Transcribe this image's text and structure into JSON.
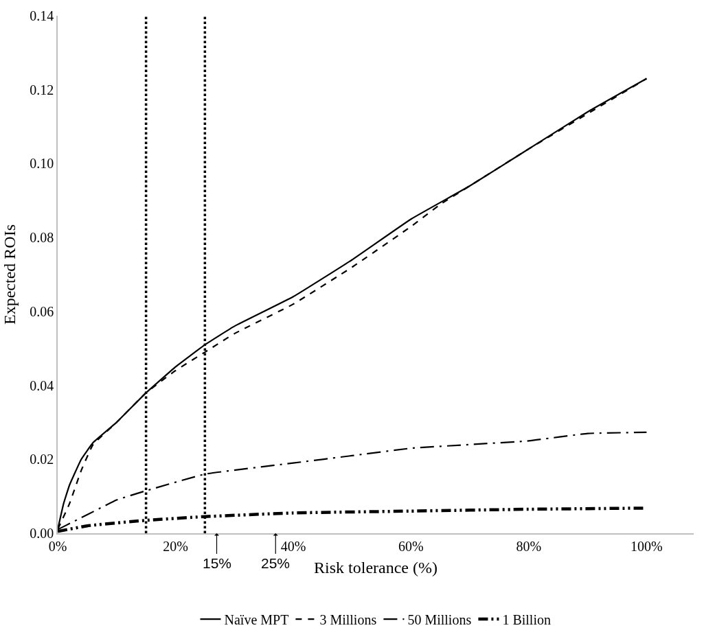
{
  "chart_data": {
    "type": "line",
    "xlabel": "Risk tolerance (%)",
    "ylabel": "Expected ROIs",
    "xlim": [
      0,
      108
    ],
    "xticks": [
      {
        "value": 0,
        "label": "0%"
      },
      {
        "value": 20,
        "label": "20%"
      },
      {
        "value": 40,
        "label": "40%"
      },
      {
        "value": 60,
        "label": "60%"
      },
      {
        "value": 80,
        "label": "80%"
      },
      {
        "value": 100,
        "label": "100%"
      }
    ],
    "ylim": [
      0,
      0.14
    ],
    "yticks": [
      {
        "value": 0,
        "label": "0.00"
      },
      {
        "value": 0.02,
        "label": "0.02"
      },
      {
        "value": 0.04,
        "label": "0.04"
      },
      {
        "value": 0.06,
        "label": "0.06"
      },
      {
        "value": 0.08,
        "label": "0.08"
      },
      {
        "value": 0.1,
        "label": "0.10"
      },
      {
        "value": 0.12,
        "label": "0.12"
      },
      {
        "value": 0.14,
        "label": "0.14"
      }
    ],
    "legend": "bottom",
    "marker": "none",
    "series": [
      {
        "name": "Naïve MPT",
        "color": "#000000",
        "line_style": "solid",
        "x": [
          0,
          1,
          2,
          4,
          6,
          10,
          15,
          20,
          25,
          30,
          40,
          50,
          60,
          70,
          80,
          90,
          100
        ],
        "values": [
          0.001,
          0.008,
          0.013,
          0.02,
          0.0245,
          0.03,
          0.038,
          0.045,
          0.051,
          0.056,
          0.064,
          0.074,
          0.085,
          0.094,
          0.104,
          0.114,
          0.123
        ]
      },
      {
        "name": "3 Millions",
        "color": "#000000",
        "line_style": "dashed",
        "x": [
          0,
          2,
          4,
          6,
          10,
          15,
          20,
          25,
          30,
          40,
          50,
          60,
          65,
          70,
          80,
          100
        ],
        "values": [
          0.001,
          0.008,
          0.017,
          0.024,
          0.03,
          0.038,
          0.044,
          0.049,
          0.054,
          0.062,
          0.072,
          0.083,
          0.089,
          0.094,
          0.104,
          0.123
        ]
      },
      {
        "name": "50 Millions",
        "color": "#000000",
        "line_style": "dashdot",
        "x": [
          0,
          5,
          10,
          15,
          25,
          40,
          50,
          60,
          70,
          80,
          90,
          100
        ],
        "values": [
          0.001,
          0.005,
          0.009,
          0.0115,
          0.016,
          0.019,
          0.021,
          0.023,
          0.024,
          0.025,
          0.027,
          0.0273
        ]
      },
      {
        "name": "1 Billion",
        "color": "#000000",
        "line_style": "dashdotdot",
        "x": [
          0,
          5,
          15,
          25,
          40,
          60,
          80,
          100
        ],
        "values": [
          0.0005,
          0.002,
          0.0035,
          0.0045,
          0.0055,
          0.006,
          0.0065,
          0.0068
        ]
      }
    ],
    "ref_lines": [
      {
        "axis": "x",
        "value": 15,
        "line_style": "dotted",
        "color": "#000000"
      },
      {
        "axis": "x",
        "value": 25,
        "line_style": "dotted",
        "color": "#000000"
      }
    ],
    "annotations": [
      {
        "text": "15%",
        "x": 27,
        "y": 0
      },
      {
        "text": "25%",
        "x": 37,
        "y": 0
      }
    ]
  }
}
